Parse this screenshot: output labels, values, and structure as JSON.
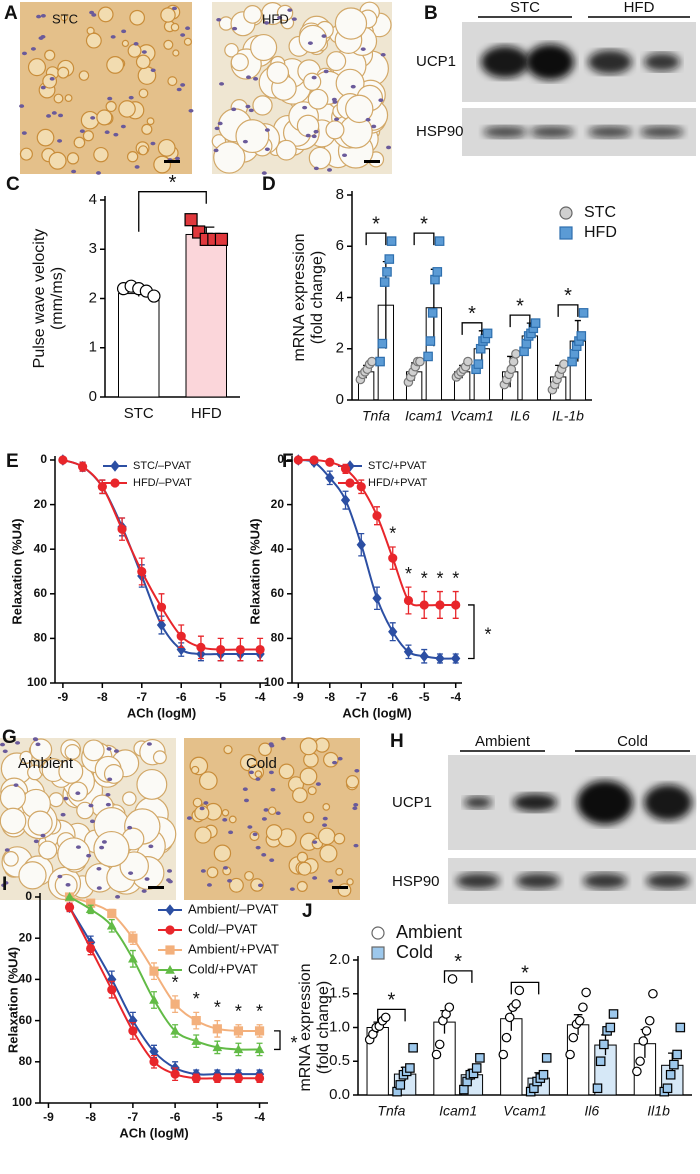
{
  "figure": {
    "A": {
      "panel": "A",
      "images": [
        "STC",
        "HFD"
      ]
    },
    "B": {
      "panel": "B",
      "groups": [
        "STC",
        "HFD"
      ],
      "bands": [
        "UCP1",
        "HSP90"
      ]
    },
    "G": {
      "panel": "G",
      "images": [
        "Ambient",
        "Cold"
      ]
    },
    "H": {
      "panel": "H",
      "groups": [
        "Ambient",
        "Cold"
      ],
      "bands": [
        "UCP1",
        "HSP90"
      ]
    }
  },
  "chart_data": [
    {
      "type": "bar",
      "panel": "C",
      "ylabel": [
        "Pulse wave velocity",
        "(mm/ms)"
      ],
      "categories": [
        "STC",
        "HFD"
      ],
      "values": [
        2.1,
        3.3
      ],
      "errors": [
        0.06,
        0.15
      ],
      "points": [
        [
          2.2,
          2.25,
          2.2,
          2.15,
          2.05
        ],
        [
          3.6,
          3.35,
          3.2,
          3.2,
          3.2
        ]
      ],
      "bar_colors": [
        "#ffffff",
        "#fbd6da"
      ],
      "point_colors": [
        "#ffffff",
        "#e0383d"
      ],
      "markers": [
        "circle",
        "square"
      ],
      "ylim": [
        0,
        4
      ],
      "yticks": [
        0,
        1,
        2,
        3,
        4
      ],
      "annotations": [
        "*"
      ]
    },
    {
      "type": "bar",
      "panel": "D",
      "ylabel": [
        "mRNA expression",
        "(fold change)"
      ],
      "categories": [
        "Tnfa",
        "Icam1",
        "Vcam1",
        "IL6",
        "IL-1b"
      ],
      "series": [
        {
          "name": "STC",
          "color": "#d0d0d0",
          "bar_color": "#ffffff",
          "marker": "circle",
          "values": [
            1.1,
            1.1,
            1.1,
            1.1,
            0.9
          ],
          "errors": [
            0.25,
            0.35,
            0.25,
            0.6,
            0.45
          ],
          "points": [
            [
              0.8,
              1.0,
              1.1,
              1.2,
              1.4,
              1.5
            ],
            [
              0.7,
              0.9,
              1.1,
              1.3,
              1.5,
              1.5
            ],
            [
              0.9,
              1.0,
              1.1,
              1.2,
              1.3,
              1.5
            ],
            [
              0.6,
              0.8,
              1.0,
              1.2,
              1.5,
              1.8
            ],
            [
              0.4,
              0.6,
              0.8,
              1.0,
              1.2,
              1.4
            ]
          ]
        },
        {
          "name": "HFD",
          "color": "#5b9bd5",
          "bar_color": "#ffffff",
          "marker": "square",
          "values": [
            3.7,
            3.6,
            2.0,
            2.5,
            2.3
          ],
          "errors": [
            1.7,
            1.5,
            0.7,
            0.5,
            0.8
          ],
          "points": [
            [
              1.5,
              2.2,
              4.6,
              5.0,
              5.5,
              6.2
            ],
            [
              1.7,
              2.3,
              3.4,
              4.7,
              5.0,
              6.2
            ],
            [
              1.2,
              1.4,
              2.0,
              2.3,
              2.4,
              2.6
            ],
            [
              1.9,
              2.2,
              2.5,
              2.6,
              2.8,
              3.0
            ],
            [
              1.5,
              1.8,
              2.1,
              2.3,
              2.5,
              3.4
            ]
          ]
        }
      ],
      "ylim": [
        0,
        8
      ],
      "yticks": [
        0,
        2,
        4,
        6,
        8
      ],
      "annotations": [
        "*",
        "*",
        "*",
        "*",
        "*"
      ]
    },
    {
      "type": "line",
      "panel": "E",
      "ylabel": [
        "Relaxation (%U4)"
      ],
      "xlabel": "ACh (logM)",
      "x": [
        -9,
        -8.5,
        -8,
        -7.5,
        -7,
        -6.5,
        -6,
        -5.5,
        -5,
        -4.5,
        -4
      ],
      "series": [
        {
          "name": "STC/–PVAT",
          "color": "#2c4fa3",
          "marker": "diamond",
          "values": [
            0,
            3,
            12,
            30,
            52,
            74,
            85,
            87,
            87,
            87,
            87
          ],
          "errors": [
            0,
            2,
            3,
            4,
            5,
            4,
            3,
            3,
            3,
            3,
            3
          ]
        },
        {
          "name": "HFD/–PVAT",
          "color": "#e8262b",
          "marker": "circle",
          "values": [
            0,
            3,
            12,
            31,
            50,
            66,
            79,
            84,
            85,
            85,
            85
          ],
          "errors": [
            0,
            2,
            3,
            5,
            6,
            6,
            5,
            5,
            5,
            5,
            5
          ]
        }
      ],
      "xlim": [
        -9.2,
        -3.8
      ],
      "xticks": [
        -9,
        -8,
        -7,
        -6,
        -5,
        -4
      ],
      "ylim": [
        100,
        0
      ],
      "yticks": [
        0,
        20,
        40,
        60,
        80,
        100
      ],
      "annotations": []
    },
    {
      "type": "line",
      "panel": "F",
      "ylabel": [
        "Relaxation (%U4)"
      ],
      "xlabel": "ACh (logM)",
      "x": [
        -9,
        -8.5,
        -8,
        -7.5,
        -7,
        -6.5,
        -6,
        -5.5,
        -5,
        -4.5,
        -4
      ],
      "series": [
        {
          "name": "STC/+PVAT",
          "color": "#2c4fa3",
          "marker": "diamond",
          "values": [
            0,
            1,
            8,
            18,
            38,
            62,
            77,
            86,
            88,
            89,
            89
          ],
          "errors": [
            0,
            1,
            3,
            4,
            5,
            5,
            4,
            3,
            3,
            2,
            2
          ]
        },
        {
          "name": "HFD/+PVAT",
          "color": "#e8262b",
          "marker": "circle",
          "values": [
            0,
            0,
            1,
            4,
            12,
            25,
            44,
            63,
            65,
            65,
            65
          ],
          "errors": [
            0,
            0,
            1,
            2,
            3,
            4,
            5,
            6,
            6,
            6,
            6
          ]
        }
      ],
      "xlim": [
        -9.2,
        -3.8
      ],
      "xticks": [
        -9,
        -8,
        -7,
        -6,
        -5,
        -4
      ],
      "ylim": [
        100,
        0
      ],
      "yticks": [
        0,
        20,
        40,
        60,
        80,
        100
      ],
      "annotations": [
        "*",
        "*",
        "*",
        "*",
        "*",
        "*"
      ]
    },
    {
      "type": "line",
      "panel": "I",
      "ylabel": [
        "Relaxation (%U4)"
      ],
      "xlabel": "ACh (logM)",
      "x": [
        -8.5,
        -8,
        -7.5,
        -7,
        -6.5,
        -6,
        -5.5,
        -5,
        -4.5,
        -4
      ],
      "series": [
        {
          "name": "Ambient/–PVAT",
          "color": "#2c4fa3",
          "marker": "diamond",
          "values": [
            5,
            22,
            40,
            60,
            75,
            83,
            86,
            86,
            86,
            86
          ],
          "errors": [
            2,
            3,
            4,
            4,
            3,
            3,
            2,
            2,
            2,
            2
          ]
        },
        {
          "name": "Cold/–PVAT",
          "color": "#e8262b",
          "marker": "circle",
          "values": [
            5,
            25,
            45,
            65,
            80,
            86,
            88,
            88,
            88,
            88
          ],
          "errors": [
            2,
            3,
            4,
            4,
            3,
            3,
            2,
            2,
            2,
            2
          ]
        },
        {
          "name": "Ambient/+PVAT",
          "color": "#f3b07c",
          "marker": "square",
          "values": [
            0,
            3,
            8,
            20,
            36,
            52,
            60,
            64,
            65,
            65
          ],
          "errors": [
            0,
            1,
            2,
            3,
            4,
            4,
            4,
            4,
            3,
            3
          ]
        },
        {
          "name": "Cold/+PVAT",
          "color": "#62bb46",
          "marker": "triangle",
          "values": [
            0,
            6,
            14,
            30,
            50,
            65,
            70,
            73,
            74,
            74
          ],
          "errors": [
            0,
            2,
            3,
            4,
            4,
            3,
            3,
            3,
            3,
            3
          ]
        }
      ],
      "xlim": [
        -9.2,
        -3.8
      ],
      "xticks": [
        -9,
        -8,
        -7,
        -6,
        -5,
        -4
      ],
      "ylim": [
        100,
        0
      ],
      "yticks": [
        0,
        20,
        40,
        60,
        80,
        100
      ],
      "annotations": [
        "*",
        "*",
        "*",
        "*",
        "*",
        "*"
      ]
    },
    {
      "type": "bar",
      "panel": "J",
      "ylabel": [
        "mRNA expression",
        "(fold change)"
      ],
      "categories": [
        "Tnfa",
        "Icam1",
        "Vcam1",
        "Il6",
        "Il1b"
      ],
      "series": [
        {
          "name": "Ambient",
          "color": "#ffffff",
          "bar_color": "#ffffff",
          "marker": "circle",
          "values": [
            1.0,
            1.08,
            1.13,
            1.04,
            0.76
          ],
          "errors": [
            0.08,
            0.17,
            0.18,
            0.15,
            0.21
          ],
          "points": [
            [
              0.82,
              0.9,
              1.0,
              1.02,
              1.1,
              1.15
            ],
            [
              0.6,
              0.75,
              1.1,
              1.2,
              1.3,
              1.72
            ],
            [
              0.6,
              0.85,
              1.15,
              1.3,
              1.35,
              1.55
            ],
            [
              0.6,
              0.85,
              1.05,
              1.1,
              1.3,
              1.52
            ],
            [
              0.35,
              0.5,
              0.8,
              0.95,
              1.1,
              1.5
            ]
          ]
        },
        {
          "name": "Cold",
          "color": "#9dc8ec",
          "bar_color": "#d6e8f7",
          "marker": "square",
          "values": [
            0.31,
            0.3,
            0.25,
            0.74,
            0.44
          ],
          "errors": [
            0.1,
            0.08,
            0.08,
            0.15,
            0.18
          ],
          "points": [
            [
              0.05,
              0.15,
              0.3,
              0.35,
              0.4,
              0.7
            ],
            [
              0.08,
              0.2,
              0.3,
              0.32,
              0.4,
              0.55
            ],
            [
              0.05,
              0.1,
              0.2,
              0.25,
              0.3,
              0.55
            ],
            [
              0.1,
              0.5,
              0.75,
              0.95,
              1.0,
              1.2
            ],
            [
              0.05,
              0.1,
              0.3,
              0.45,
              0.6,
              1.0
            ]
          ]
        }
      ],
      "ylim": [
        0,
        2
      ],
      "yticks": [
        {
          "value": 0,
          "label": "0.0"
        },
        {
          "value": 0.5,
          "label": "0.5"
        },
        {
          "value": 1,
          "label": "1.0"
        },
        {
          "value": 1.5,
          "label": "1.5"
        },
        {
          "value": 2,
          "label": "2.0"
        }
      ],
      "annotations": [
        "*",
        "*",
        "*"
      ]
    }
  ]
}
